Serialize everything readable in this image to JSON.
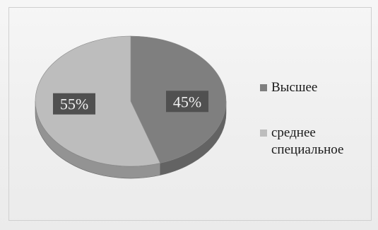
{
  "chart_data": {
    "type": "pie",
    "title": "",
    "categories": [
      "Высшее",
      "среднее специальное"
    ],
    "values": [
      45,
      55
    ],
    "labels": [
      "45%",
      "55%"
    ],
    "colors": [
      "#7f7f7f",
      "#bdbdbd"
    ],
    "label_box_color": "#505050",
    "legend_position": "right",
    "style": "3d"
  },
  "legend": {
    "items": [
      {
        "label": "Высшее",
        "color": "#7f7f7f"
      },
      {
        "label": "среднее специальное",
        "color": "#bdbdbd"
      }
    ]
  }
}
